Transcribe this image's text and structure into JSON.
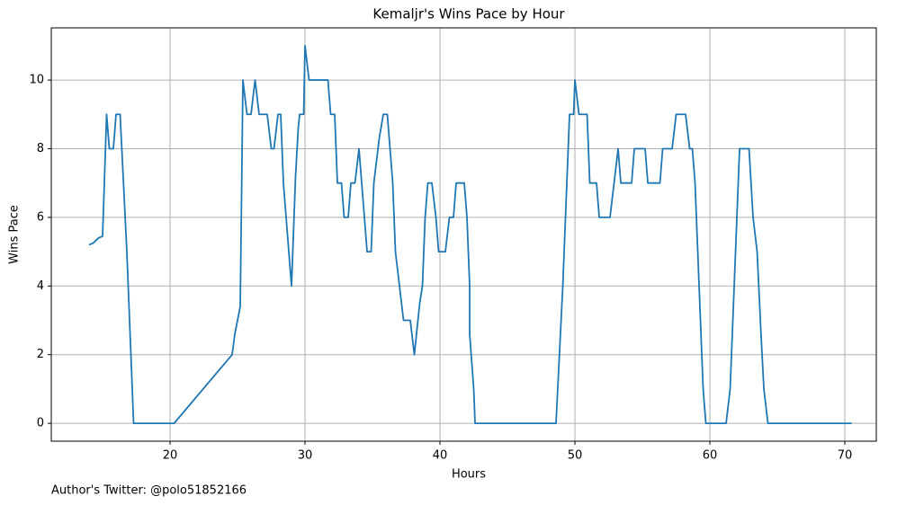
{
  "chart_data": {
    "type": "line",
    "title": "Kemaljr's Wins Pace by Hour",
    "xlabel": "Hours",
    "ylabel": "Wins Pace",
    "footnote": "Author's Twitter: @polo51852166",
    "color": "#1f77b4",
    "grid": true,
    "xlim": [
      11.2,
      72.33
    ],
    "ylim": [
      -0.52,
      11.52
    ],
    "xticks": [
      20,
      30,
      40,
      50,
      60,
      70
    ],
    "yticks": [
      0,
      2,
      4,
      6,
      8,
      10
    ],
    "x": [
      14.0,
      14.3,
      14.7,
      15.0,
      15.3,
      15.5,
      15.8,
      16.0,
      16.3,
      16.8,
      17.1,
      17.3,
      20.3,
      24.6,
      24.8,
      25.2,
      25.4,
      25.7,
      26.0,
      26.3,
      26.6,
      27.2,
      27.5,
      27.7,
      28.0,
      28.2,
      28.4,
      28.7,
      29.0,
      29.3,
      29.5,
      29.6,
      29.9,
      30.0,
      30.3,
      31.0,
      31.7,
      31.9,
      32.2,
      32.4,
      32.7,
      32.9,
      33.2,
      33.4,
      33.7,
      34.0,
      34.3,
      34.6,
      34.9,
      35.1,
      35.5,
      35.8,
      36.1,
      36.5,
      36.7,
      37.0,
      37.3,
      37.8,
      38.1,
      38.5,
      38.7,
      38.9,
      39.1,
      39.4,
      39.7,
      39.9,
      40.4,
      40.7,
      41.0,
      41.2,
      41.8,
      42.0,
      42.2,
      42.2,
      42.5,
      42.6,
      48.6,
      49.1,
      49.4,
      49.6,
      49.9,
      50.0,
      50.3,
      50.9,
      51.1,
      51.6,
      51.8,
      52.6,
      52.9,
      53.2,
      53.4,
      54.2,
      54.4,
      55.2,
      55.4,
      56.3,
      56.5,
      57.2,
      57.5,
      58.2,
      58.5,
      58.7,
      58.9,
      59.2,
      59.5,
      59.7,
      61.2,
      61.5,
      61.9,
      62.2,
      62.9,
      63.2,
      63.5,
      63.8,
      64.0,
      64.3,
      70.5
    ],
    "values": [
      5.2,
      5.25,
      5.4,
      5.45,
      9,
      8,
      8,
      9,
      9,
      5,
      2,
      0,
      0,
      2,
      2.6,
      3.4,
      10,
      9,
      9,
      10,
      9,
      9,
      8,
      8,
      9,
      9,
      7,
      5.5,
      4,
      7.2,
      8.6,
      9,
      9,
      11,
      10,
      10,
      10,
      9,
      9,
      7,
      7,
      6,
      6,
      7,
      7,
      8,
      6.5,
      5,
      5,
      7,
      8.3,
      9,
      9,
      7,
      5,
      4,
      3,
      3,
      2,
      3.5,
      4,
      6,
      7,
      7,
      6,
      5,
      5,
      6,
      6,
      7,
      7,
      6,
      4,
      2.6,
      1,
      0,
      0,
      4,
      7,
      9,
      9,
      10,
      9,
      9,
      7,
      7,
      6,
      6,
      7,
      8,
      7,
      7,
      8,
      8,
      7,
      7,
      8,
      8,
      9,
      9,
      8,
      8,
      7,
      4,
      1,
      0,
      0,
      1,
      5,
      8,
      8,
      6,
      5,
      2.5,
      1,
      0,
      0
    ]
  }
}
